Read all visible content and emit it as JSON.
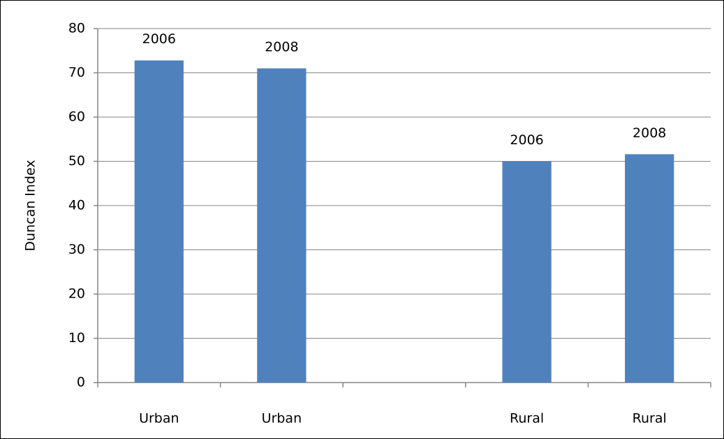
{
  "chart_data": {
    "type": "bar",
    "y_label": "Duncan Index",
    "categories": [
      "Urban",
      "Urban",
      null,
      "Rural",
      "Rural"
    ],
    "values": [
      72.8,
      71,
      null,
      50,
      51.6
    ],
    "bar_labels": [
      "2006",
      "2008",
      null,
      "2006",
      "2008"
    ],
    "color": "#4f81bd",
    "ylim": [
      0,
      80
    ],
    "yticks": [
      0,
      10,
      20,
      30,
      40,
      50,
      60,
      70,
      80
    ],
    "grid": true
  }
}
